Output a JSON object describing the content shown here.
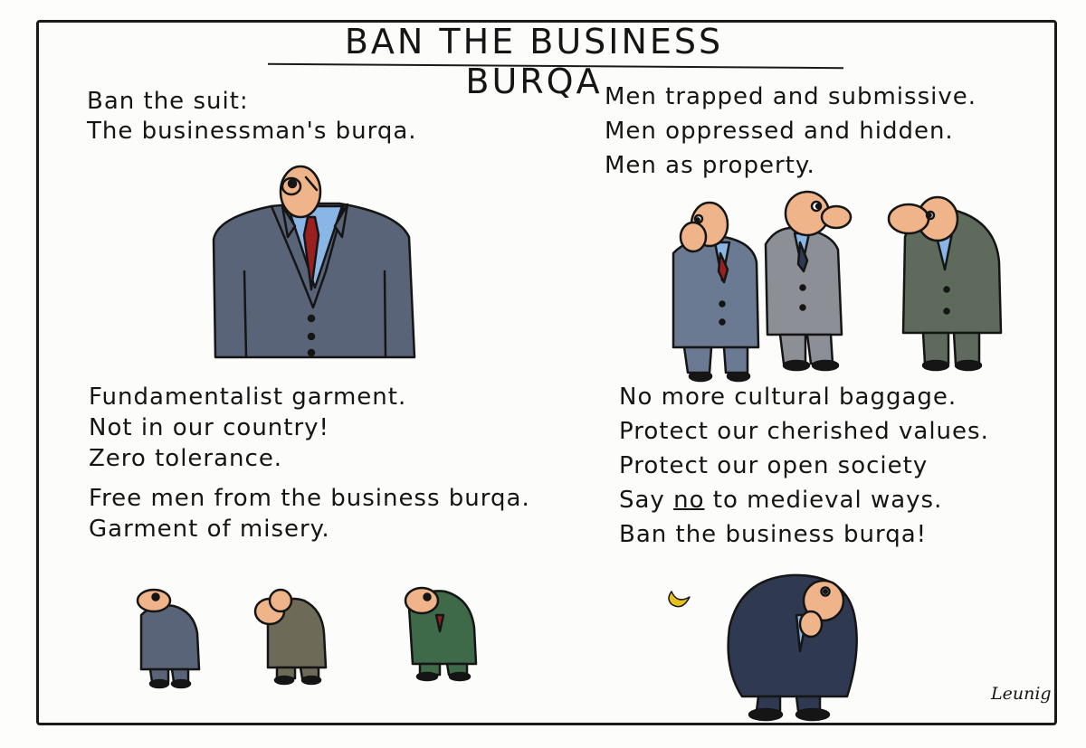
{
  "title": "BAN THE BUSINESS BURQA",
  "left_top": [
    "Ban the suit:",
    "The businessman's burqa."
  ],
  "right_top": [
    "Men trapped and submissive.",
    "Men oppressed and hidden.",
    "Men as property."
  ],
  "left_bottom": [
    "Fundamentalist garment.",
    "Not in our country!",
    "Zero tolerance.",
    "Free men from the business burqa.",
    "Garment of misery."
  ],
  "right_bottom": {
    "line1": "No more cultural baggage.",
    "line2": "Protect our cherished values.",
    "line3": "Protect our open society",
    "line4_pre": "Say ",
    "line4_no": "no",
    "line4_post": " to medieval ways.",
    "line5": "Ban the business burqa!"
  },
  "signature": "Leunig",
  "colors": {
    "suit_blue_gray": "#5a6478",
    "suit_gray": "#8c9096",
    "suit_green_gray": "#5e6b5c",
    "suit_olive": "#6e6a58",
    "suit_green": "#3f6a4a",
    "suit_navy": "#2f3a52",
    "shirt_blue": "#8ab6e6",
    "tie_red": "#9a2020",
    "skin": "#f0b48a",
    "moon": "#e8c020"
  }
}
